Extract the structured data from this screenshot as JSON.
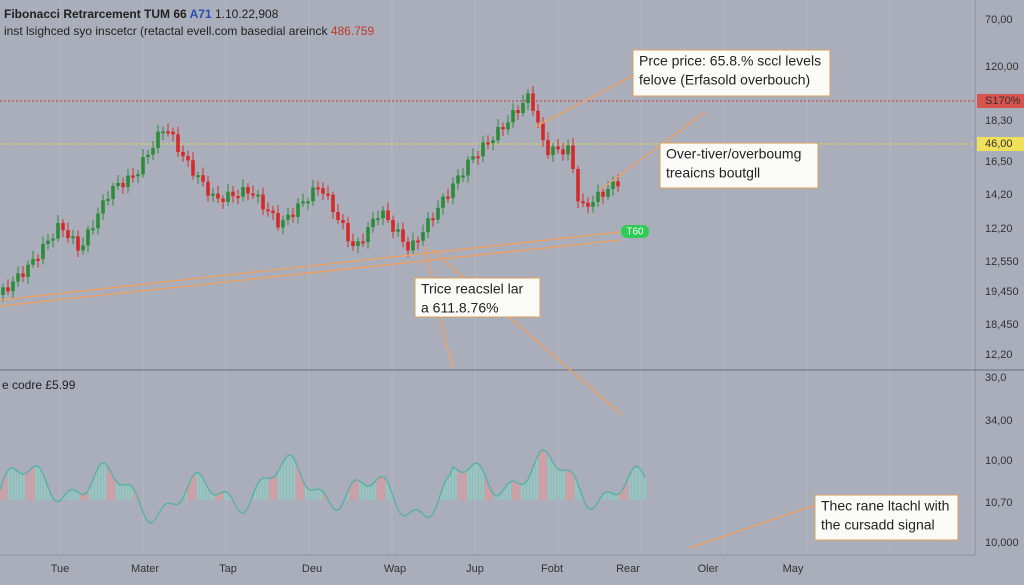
{
  "header": {
    "title": "Fibonacci Retrarcement TUM 66",
    "badge": "A71",
    "quote": "1.10.22,908",
    "subtitle": "inst lsighced syo inscetcr (retactal evell.com basedial areinck",
    "subtitle_value": "486.759"
  },
  "price_axis": [
    "70,00",
    "120,00",
    "S170%",
    "18,30",
    "46,00",
    "16,50",
    "14,20",
    "12,20",
    "12,550",
    "19,450",
    "18,450",
    "12,20"
  ],
  "indicator_axis": [
    "30,0",
    "34,00",
    "10,00",
    "10,70",
    "10,000"
  ],
  "time_axis": [
    "Tue",
    "Mater",
    "Tap",
    "Deu",
    "Wap",
    "Jup",
    "Fobt",
    "Rear",
    "Oler",
    "May"
  ],
  "indicator_label": "e codre £5.99",
  "signal_badge": "T60",
  "annotations": [
    {
      "lines": [
        "Prce price: 65.8.% sccl levels",
        "felove (Erfasold overbouch)"
      ]
    },
    {
      "lines": [
        "Over-tiver/overboumg",
        "treaicns boutgll"
      ]
    },
    {
      "lines": [
        "Trice reacslel lar",
        "a 611.8.76%"
      ]
    },
    {
      "lines": [
        "Thec rane ltachl with",
        "the cursadd signal"
      ]
    }
  ]
}
